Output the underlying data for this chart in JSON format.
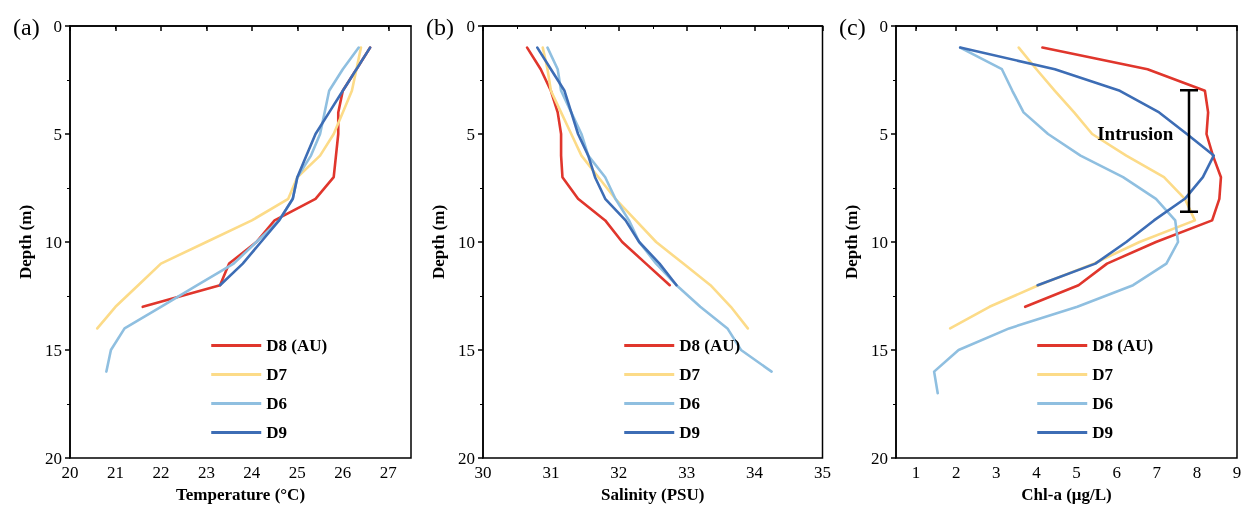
{
  "chart_data": [
    {
      "type": "line",
      "title": "(a)",
      "xlabel": "Temperature (°C)",
      "ylabel": "Depth (m)",
      "xlim": [
        20,
        27.5
      ],
      "xticks": [
        20,
        21,
        22,
        23,
        24,
        25,
        26,
        27
      ],
      "ylim": [
        20,
        0
      ],
      "yticks": [
        0,
        5,
        10,
        15,
        20
      ],
      "grid": false,
      "legend": "bottom right",
      "series": [
        {
          "name": "D8 (AU)",
          "color": "#e0362c",
          "x": [
            26.6,
            26.3,
            26.0,
            25.9,
            25.9,
            25.85,
            25.8,
            25.4,
            24.5,
            24.1,
            23.5,
            23.3,
            21.6
          ],
          "values": [
            1,
            2,
            3,
            4,
            5,
            6,
            7,
            8,
            9,
            10,
            11,
            12,
            13
          ]
        },
        {
          "name": "D7",
          "color": "#fcdb88",
          "x": [
            26.4,
            26.3,
            26.2,
            26.0,
            25.8,
            25.5,
            25.0,
            24.8,
            24.0,
            23.0,
            22.0,
            21.5,
            21.0,
            20.6
          ],
          "values": [
            1,
            2,
            3,
            4,
            5,
            6,
            7,
            8,
            9,
            10,
            11,
            12,
            13,
            14
          ]
        },
        {
          "name": "D6",
          "color": "#8fbfe0",
          "x": [
            26.35,
            26.0,
            25.7,
            25.6,
            25.5,
            25.3,
            25.0,
            24.9,
            24.6,
            24.1,
            23.6,
            22.8,
            22.0,
            21.2,
            20.9,
            20.8
          ],
          "values": [
            1,
            2,
            3,
            4,
            5,
            6,
            7,
            8,
            9,
            10,
            11,
            12,
            13,
            14,
            15,
            16
          ]
        },
        {
          "name": "D9",
          "color": "#3d6db5",
          "x": [
            26.6,
            26.3,
            26.0,
            25.7,
            25.4,
            25.2,
            25.0,
            24.9,
            24.6,
            24.2,
            23.8,
            23.3
          ],
          "values": [
            1,
            2,
            3,
            4,
            5,
            6,
            7,
            8,
            9,
            10,
            11,
            12
          ]
        }
      ]
    },
    {
      "type": "line",
      "title": "(b)",
      "xlabel": "Salinity (PSU)",
      "ylabel": "Depth (m)",
      "xlim": [
        30,
        35
      ],
      "xticks": [
        30,
        31,
        32,
        33,
        34,
        35
      ],
      "ylim": [
        20,
        0
      ],
      "yticks": [
        0,
        5,
        10,
        15,
        20
      ],
      "grid": false,
      "legend": "bottom right",
      "series": [
        {
          "name": "D8 (AU)",
          "color": "#e0362c",
          "x": [
            30.65,
            30.85,
            31.0,
            31.1,
            31.15,
            31.15,
            31.17,
            31.4,
            31.8,
            32.05,
            32.4,
            32.75
          ],
          "values": [
            1,
            2,
            3,
            4,
            5,
            6,
            7,
            8,
            9,
            10,
            11,
            12
          ]
        },
        {
          "name": "D7",
          "color": "#fcdb88",
          "x": [
            30.88,
            30.95,
            31.0,
            31.15,
            31.3,
            31.45,
            31.7,
            31.95,
            32.25,
            32.55,
            32.95,
            33.35,
            33.65,
            33.9
          ],
          "values": [
            1,
            2,
            3,
            4,
            5,
            6,
            7,
            8,
            9,
            10,
            11,
            12,
            13,
            14
          ]
        },
        {
          "name": "D6",
          "color": "#8fbfe0",
          "x": [
            30.95,
            31.1,
            31.15,
            31.3,
            31.45,
            31.55,
            31.8,
            31.95,
            32.15,
            32.3,
            32.55,
            32.85,
            33.2,
            33.6,
            33.8,
            34.25
          ],
          "values": [
            1,
            2,
            3,
            4,
            5,
            6,
            7,
            8,
            9,
            10,
            11,
            12,
            13,
            14,
            15,
            16
          ]
        },
        {
          "name": "D9",
          "color": "#3d6db5",
          "x": [
            30.8,
            31.0,
            31.2,
            31.3,
            31.4,
            31.55,
            31.65,
            31.8,
            32.1,
            32.3,
            32.6,
            32.85
          ],
          "values": [
            1,
            2,
            3,
            4,
            5,
            6,
            7,
            8,
            9,
            10,
            11,
            12
          ]
        }
      ]
    },
    {
      "type": "line",
      "title": "(c)",
      "xlabel": "Chl-a (μg/L)",
      "ylabel": "Depth (m)",
      "xlim": [
        0.5,
        9
      ],
      "xticks": [
        1,
        2,
        3,
        4,
        5,
        6,
        7,
        8,
        9
      ],
      "ylim": [
        20,
        0
      ],
      "yticks": [
        0,
        5,
        10,
        15,
        20
      ],
      "grid": false,
      "legend": "bottom right",
      "annotations": [
        "Intrusion"
      ],
      "series": [
        {
          "name": "D8 (AU)",
          "color": "#e0362c",
          "x": [
            4.15,
            6.77,
            8.2,
            8.28,
            8.24,
            8.4,
            8.6,
            8.56,
            8.38,
            6.98,
            5.76,
            5.05,
            3.72
          ],
          "values": [
            1,
            2,
            3,
            4,
            5,
            6,
            7,
            8,
            9,
            10,
            11,
            12,
            13
          ]
        },
        {
          "name": "D7",
          "color": "#fcdb88",
          "x": [
            3.56,
            4.0,
            4.46,
            4.94,
            5.39,
            6.24,
            7.18,
            7.7,
            7.95,
            6.57,
            5.43,
            4.05,
            2.83,
            1.85
          ],
          "values": [
            1,
            2,
            3,
            4,
            5,
            6,
            7,
            8,
            9,
            10,
            11,
            12,
            13,
            14
          ]
        },
        {
          "name": "D6",
          "color": "#8fbfe0",
          "x": [
            2.1,
            3.14,
            3.4,
            3.68,
            4.29,
            5.1,
            6.16,
            6.98,
            7.46,
            7.53,
            7.24,
            6.41,
            5.02,
            3.32,
            2.06,
            1.45,
            1.54
          ],
          "values": [
            1,
            2,
            3,
            4,
            5,
            6,
            7,
            8,
            9,
            10,
            11,
            12,
            13,
            14,
            15,
            16,
            17
          ]
        },
        {
          "name": "D9",
          "color": "#3d6db5",
          "x": [
            2.1,
            4.46,
            6.08,
            7.06,
            7.75,
            8.42,
            8.15,
            7.7,
            6.93,
            6.24,
            5.47,
            4.03
          ],
          "values": [
            1,
            2,
            3,
            4,
            5,
            6,
            7,
            8,
            9,
            10,
            11,
            12
          ]
        }
      ]
    }
  ]
}
